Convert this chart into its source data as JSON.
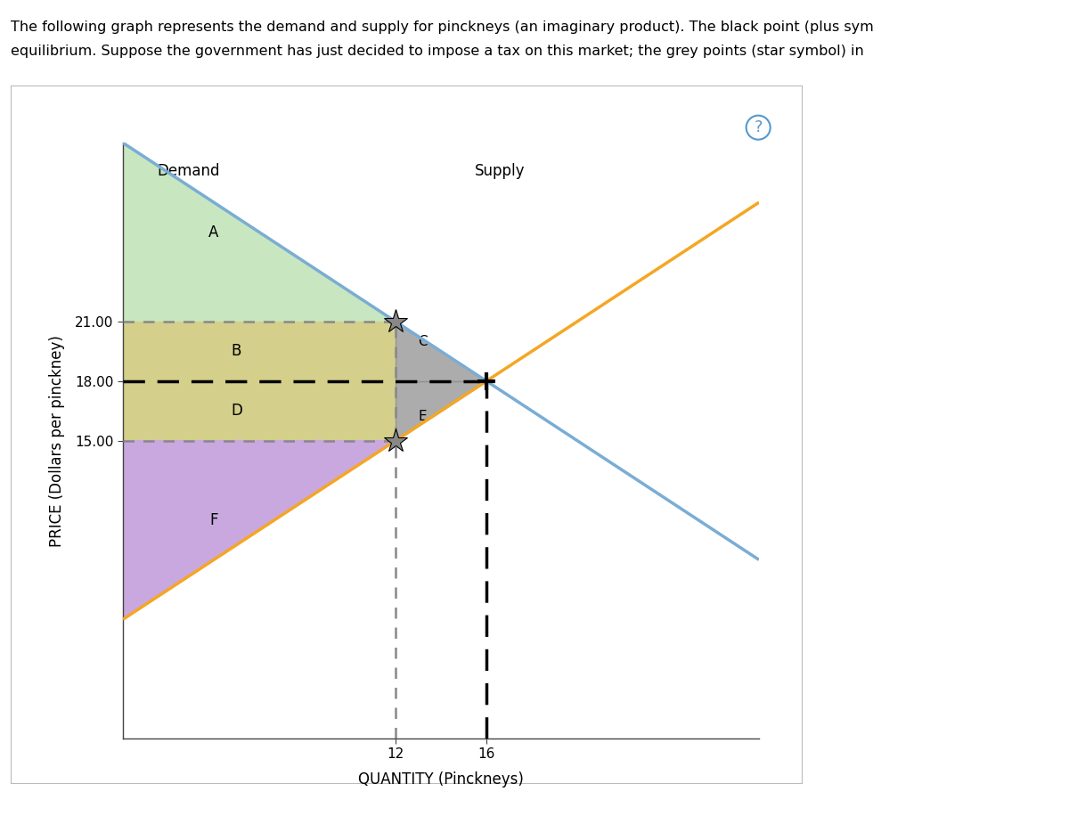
{
  "title_line1": "The following graph represents the demand and supply for pinckneys (an imaginary product). The black point (plus sym",
  "title_line2": "equilibrium. Suppose the government has just decided to impose a tax on this market; the grey points (star symbol) in",
  "demand_intercept": 30,
  "demand_slope": -0.75,
  "supply_intercept": 6,
  "supply_slope": 0.75,
  "equilibrium_Q": 16,
  "equilibrium_P": 18,
  "tax_Q": 12,
  "tax_P_high": 21,
  "tax_P_low": 15,
  "xmin": 0,
  "xmax": 28,
  "ymin": 0,
  "ymax": 30,
  "demand_color": "#7aadd4",
  "supply_color": "#f5a623",
  "region_A_color": "#c8e6c0",
  "region_BCDE_color": "#d4cf8a",
  "region_CE_color": "#909090",
  "region_F_color": "#c9a8e0",
  "xlabel": "QUANTITY (Pinckneys)",
  "ylabel": "PRICE (Dollars per pinckney)",
  "demand_label": "Demand",
  "supply_label": "Supply",
  "price_ticks": [
    15.0,
    18.0,
    21.0
  ],
  "qty_ticks": [
    12,
    16
  ],
  "label_A": "A",
  "label_B": "B",
  "label_C": "C",
  "label_D": "D",
  "label_E": "E",
  "label_F": "F"
}
